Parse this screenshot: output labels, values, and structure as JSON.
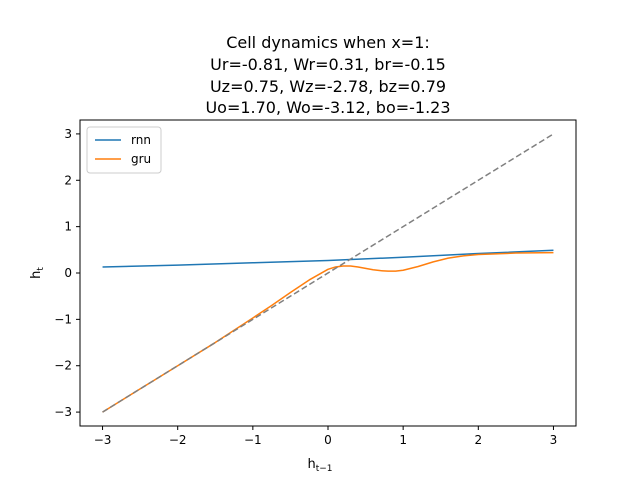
{
  "chart_data": {
    "type": "line",
    "title_lines": [
      "Cell dynamics when x=1:",
      "Ur=-0.81, Wr=0.31, br=-0.15",
      "Uz=0.75, Wz=-2.78, bz=0.79",
      "Uo=1.70, Wo=-3.12, bo=-1.23"
    ],
    "xlabel_main": "h",
    "xlabel_sub": "t−1",
    "ylabel_main": "h",
    "ylabel_sub": "t",
    "xlim": [
      -3.3,
      3.3
    ],
    "ylim": [
      -3.3,
      3.3
    ],
    "x_ticks": [
      -3,
      -2,
      -1,
      0,
      1,
      2,
      3
    ],
    "y_ticks": [
      -3,
      -2,
      -1,
      0,
      1,
      2,
      3
    ],
    "x_tick_labels": [
      "−3",
      "−2",
      "−1",
      "0",
      "1",
      "2",
      "3"
    ],
    "y_tick_labels": [
      "−3",
      "−2",
      "−1",
      "0",
      "1",
      "2",
      "3"
    ],
    "legend_position": "upper left",
    "series": [
      {
        "name": "rnn",
        "color": "#1f77b4",
        "x": [
          -3,
          -2,
          -1,
          0,
          1,
          2,
          3
        ],
        "y": [
          0.13,
          0.17,
          0.22,
          0.27,
          0.34,
          0.42,
          0.49
        ]
      },
      {
        "name": "gru",
        "color": "#ff7f0e",
        "x": [
          -3,
          -2.5,
          -2,
          -1.5,
          -1,
          -0.75,
          -0.5,
          -0.25,
          0,
          0.1,
          0.2,
          0.3,
          0.4,
          0.5,
          0.6,
          0.7,
          0.8,
          0.9,
          1,
          1.2,
          1.4,
          1.6,
          1.8,
          2,
          2.5,
          3
        ],
        "y": [
          -3.0,
          -2.5,
          -2.0,
          -1.5,
          -0.97,
          -0.7,
          -0.42,
          -0.15,
          0.08,
          0.13,
          0.15,
          0.15,
          0.13,
          0.1,
          0.07,
          0.05,
          0.04,
          0.04,
          0.06,
          0.14,
          0.24,
          0.32,
          0.37,
          0.4,
          0.43,
          0.44
        ]
      },
      {
        "name": "",
        "color": "#808080",
        "dashed": true,
        "x": [
          -3,
          3
        ],
        "y": [
          -3,
          3
        ]
      }
    ]
  }
}
